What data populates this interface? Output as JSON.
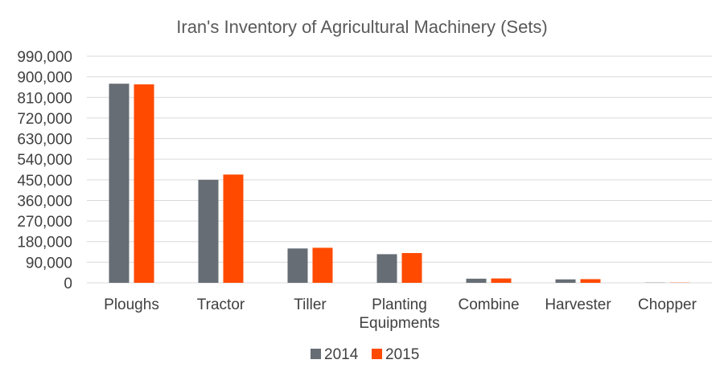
{
  "chart_data": {
    "type": "bar",
    "title": "Iran's Inventory of Agricultural Machinery (Sets)",
    "categories": [
      [
        "Ploughs"
      ],
      [
        "Tractor"
      ],
      [
        "Tiller"
      ],
      [
        "Planting",
        "Equipments"
      ],
      [
        "Combine"
      ],
      [
        "Harvester"
      ],
      [
        "Chopper"
      ]
    ],
    "series": [
      {
        "name": "2014",
        "color": "#666d74",
        "values": [
          870000,
          450000,
          150000,
          125000,
          18000,
          15000,
          1000
        ]
      },
      {
        "name": "2015",
        "color": "#ff4a00",
        "values": [
          867000,
          473000,
          153000,
          130000,
          19000,
          16000,
          1000
        ]
      }
    ],
    "ylim": [
      0,
      990000
    ],
    "yticks": [
      0,
      90000,
      180000,
      270000,
      360000,
      450000,
      540000,
      630000,
      720000,
      810000,
      900000,
      990000
    ],
    "ytick_labels": [
      "0",
      "90,000",
      "180,000",
      "270,000",
      "360,000",
      "450,000",
      "540,000",
      "630,000",
      "720,000",
      "810,000",
      "900,000",
      "990,000"
    ],
    "grid": true,
    "legend": "bottom"
  }
}
